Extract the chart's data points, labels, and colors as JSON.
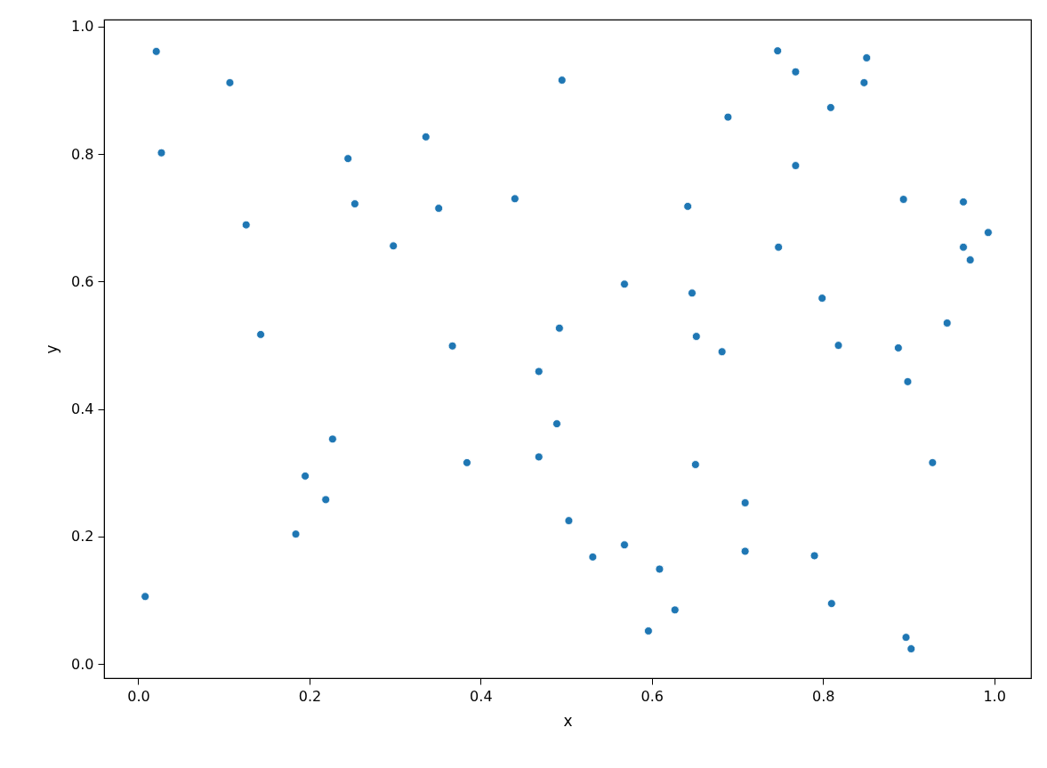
{
  "chart_data": {
    "type": "scatter",
    "xlabel": "x",
    "ylabel": "y",
    "color": "#1f77b4",
    "marker": "circle",
    "grid": false,
    "x": [
      0.021,
      0.027,
      0.008,
      0.107,
      0.126,
      0.143,
      0.184,
      0.195,
      0.219,
      0.227,
      0.245,
      0.253,
      0.298,
      0.336,
      0.351,
      0.367,
      0.384,
      0.44,
      0.468,
      0.468,
      0.489,
      0.492,
      0.495,
      0.503,
      0.531,
      0.568,
      0.568,
      0.596,
      0.609,
      0.627,
      0.642,
      0.647,
      0.651,
      0.652,
      0.682,
      0.689,
      0.709,
      0.709,
      0.747,
      0.748,
      0.768,
      0.768,
      0.79,
      0.799,
      0.809,
      0.81,
      0.818,
      0.848,
      0.851,
      0.888,
      0.894,
      0.897,
      0.899,
      0.903,
      0.928,
      0.945,
      0.964,
      0.964,
      0.972,
      0.993
    ],
    "values": [
      0.961,
      0.802,
      0.106,
      0.912,
      0.689,
      0.517,
      0.204,
      0.295,
      0.258,
      0.353,
      0.793,
      0.722,
      0.656,
      0.827,
      0.715,
      0.499,
      0.316,
      0.73,
      0.459,
      0.325,
      0.377,
      0.527,
      0.916,
      0.225,
      0.168,
      0.596,
      0.187,
      0.052,
      0.149,
      0.085,
      0.718,
      0.582,
      0.313,
      0.514,
      0.49,
      0.858,
      0.253,
      0.177,
      0.962,
      0.654,
      0.929,
      0.782,
      0.17,
      0.574,
      0.873,
      0.095,
      0.5,
      0.912,
      0.951,
      0.496,
      0.729,
      0.042,
      0.443,
      0.024,
      0.316,
      0.535,
      0.725,
      0.654,
      0.634,
      0.677
    ],
    "xlim": [
      -0.04,
      1.043
    ],
    "ylim": [
      -0.022,
      1.011
    ],
    "xticks": [
      {
        "value": 0,
        "label": "0.0"
      },
      {
        "value": 0.2,
        "label": "0.2"
      },
      {
        "value": 0.4,
        "label": "0.4"
      },
      {
        "value": 0.6,
        "label": "0.6"
      },
      {
        "value": 0.8,
        "label": "0.8"
      },
      {
        "value": 1,
        "label": "1.0"
      }
    ],
    "yticks": [
      {
        "value": 0,
        "label": "0.0"
      },
      {
        "value": 0.2,
        "label": "0.2"
      },
      {
        "value": 0.4,
        "label": "0.4"
      },
      {
        "value": 0.6,
        "label": "0.6"
      },
      {
        "value": 0.8,
        "label": "0.8"
      },
      {
        "value": 1,
        "label": "1.0"
      }
    ]
  }
}
